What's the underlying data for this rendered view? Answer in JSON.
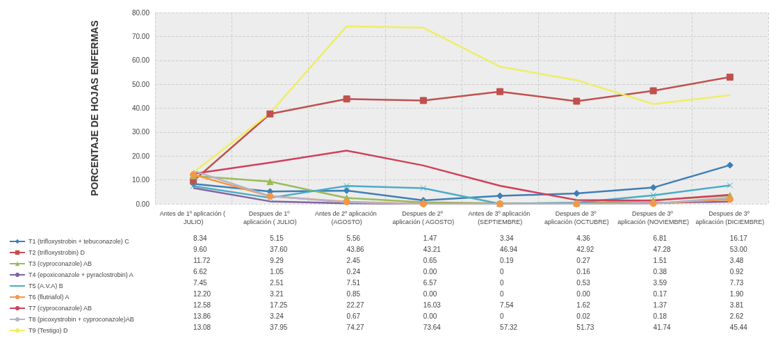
{
  "chart_data": {
    "type": "line",
    "ylabel": "PORCENTAJE DE HOJAS ENFERMAS",
    "categories": [
      "Antes de 1º aplicación ( JULIO)",
      "Despues de 1º aplicación ( JULIO)",
      "Antes de 2º aplicación (AGOSTO)",
      "Despues de 2º aplicación ( AGOSTO)",
      "Antes de 3º aplicación (SEPTIEMBRE)",
      "Despues de 3º aplicación (OCTUBRE)",
      "Despues de 3º aplicación (NOVIEMBRE)",
      "Despues de 3º aplicación (DICIEMBRE)"
    ],
    "ylim": [
      0,
      80
    ],
    "yticks": [
      {
        "value": 0,
        "label": "0.00"
      },
      {
        "value": 10,
        "label": "10.00"
      },
      {
        "value": 20,
        "label": "20.00"
      },
      {
        "value": 30,
        "label": "30.00"
      },
      {
        "value": 40,
        "label": "40.00"
      },
      {
        "value": 50,
        "label": "50.00"
      },
      {
        "value": 60,
        "label": "60.00"
      },
      {
        "value": 70,
        "label": "70.00"
      },
      {
        "value": 80,
        "label": "80.00"
      }
    ],
    "grid": true,
    "legend": "bottom left",
    "series": [
      {
        "name": "T1 (trifloxystrobin + tebuconazole) C",
        "color": "#3f7fb5",
        "marker": "diamond",
        "values": [
          8.34,
          5.15,
          5.56,
          1.47,
          3.34,
          4.36,
          6.81,
          16.17
        ],
        "value_labels": [
          "8.34",
          "5.15",
          "5.56",
          "1.47",
          "3.34",
          "4.36",
          "6.81",
          "16.17"
        ]
      },
      {
        "name": "T2 (trifloxystrobin) D",
        "color": "#c0504d",
        "marker": "square",
        "values": [
          9.6,
          37.6,
          43.86,
          43.21,
          46.94,
          42.92,
          47.28,
          53.0
        ],
        "value_labels": [
          "9.60",
          "37.60",
          "43.86",
          "43.21",
          "46.94",
          "42.92",
          "47.28",
          "53.00"
        ]
      },
      {
        "name": "T3 (cyproconazole) AB",
        "color": "#9bbb59",
        "marker": "triangle",
        "values": [
          11.72,
          9.29,
          2.45,
          0.65,
          0.19,
          0.27,
          1.51,
          3.48
        ],
        "value_labels": [
          "11.72",
          "9.29",
          "2.45",
          "0.65",
          "0.19",
          "0.27",
          "1.51",
          "3.48"
        ]
      },
      {
        "name": "T4 (epoxiconazole + pyraclostrobin) A",
        "color": "#8064a2",
        "marker": "none",
        "values": [
          6.62,
          1.05,
          0.24,
          0.0,
          0,
          0.16,
          0.38,
          0.92
        ],
        "value_labels": [
          "6.62",
          "1.05",
          "0.24",
          "0.00",
          "0",
          "0.16",
          "0.38",
          "0.92"
        ]
      },
      {
        "name": "T5 (A.V.A) B",
        "color": "#4bacc6",
        "marker": "cross",
        "values": [
          7.45,
          2.51,
          7.51,
          6.57,
          0,
          0.53,
          3.59,
          7.73
        ],
        "value_labels": [
          "7.45",
          "2.51",
          "7.51",
          "6.57",
          "0",
          "0.53",
          "3.59",
          "7.73"
        ]
      },
      {
        "name": "T6 (flutriafol) A",
        "color": "#f79646",
        "marker": "circle",
        "values": [
          12.2,
          3.21,
          0.85,
          0.0,
          0,
          0.0,
          0.17,
          1.9
        ],
        "value_labels": [
          "12.20",
          "3.21",
          "0.85",
          "0.00",
          "0",
          "0.00",
          "0.17",
          "1.90"
        ]
      },
      {
        "name": "T7 (cyproconazole) AB",
        "color": "#d0405a",
        "marker": "none",
        "values": [
          12.58,
          17.25,
          22.27,
          16.03,
          7.54,
          1.62,
          1.37,
          3.81
        ],
        "value_labels": [
          "12.58",
          "17.25",
          "22.27",
          "16.03",
          "7.54",
          "1.62",
          "1.37",
          "3.81"
        ]
      },
      {
        "name": "T8 (picoxystrobin + cyproconazole)AB",
        "color": "#b4b4c8",
        "marker": "none",
        "values": [
          13.86,
          3.24,
          0.67,
          0.0,
          0,
          0.02,
          0.18,
          2.62
        ],
        "value_labels": [
          "13.86",
          "3.24",
          "0.67",
          "0.00",
          "0",
          "0.02",
          "0.18",
          "2.62"
        ]
      },
      {
        "name": "T9 (Testigo) D",
        "color": "#eeee66",
        "marker": "none",
        "values": [
          13.08,
          37.95,
          74.27,
          73.64,
          57.32,
          51.73,
          41.74,
          45.44
        ],
        "value_labels": [
          "13.08",
          "37.95",
          "74.27",
          "73.64",
          "57.32",
          "51.73",
          "41.74",
          "45.44"
        ]
      }
    ]
  }
}
